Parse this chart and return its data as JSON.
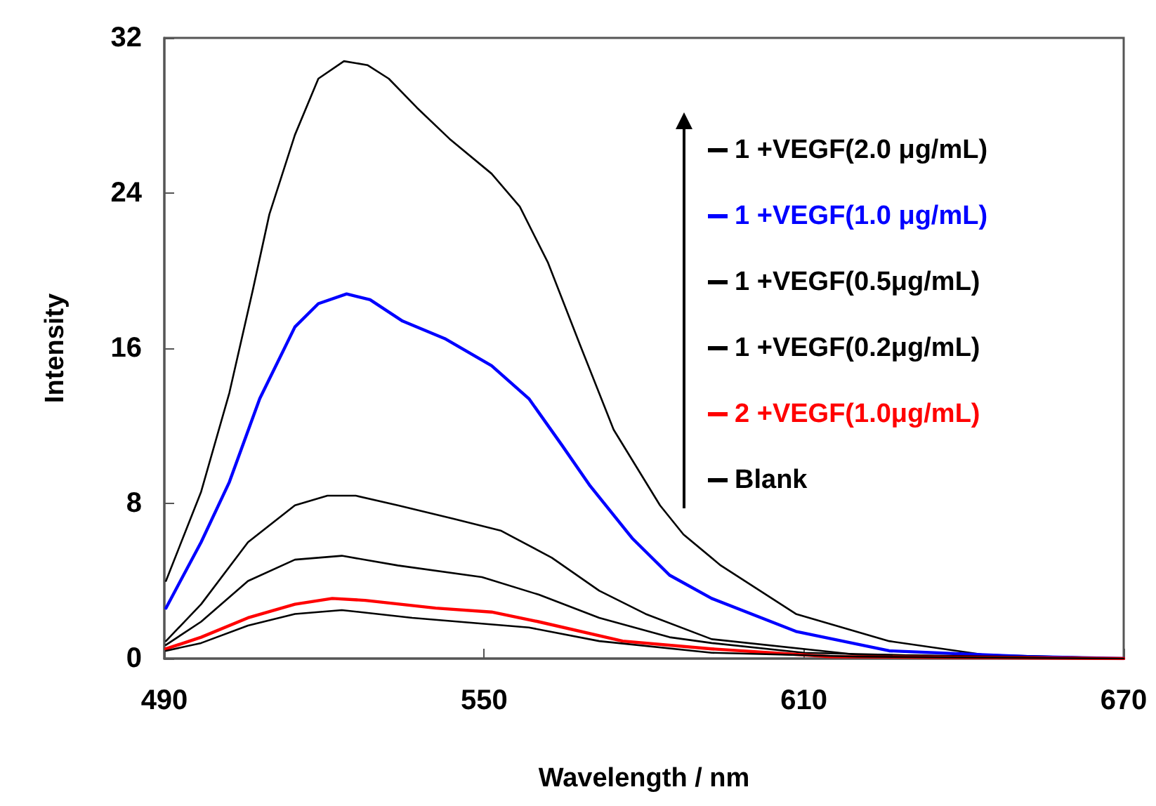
{
  "chart_data": {
    "type": "line",
    "xlabel": "Wavelength / nm",
    "ylabel": "Intensity",
    "xlim": [
      490,
      670
    ],
    "xticks": [
      490,
      550,
      610,
      670
    ],
    "ylim": [
      0,
      32
    ],
    "yticks": [
      0,
      8,
      16,
      24,
      32
    ],
    "grid": false,
    "legend": "top right",
    "marker": "none",
    "line_style": "solid",
    "series": [
      {
        "name": "1 +VEGF(2.0 μg/mL)",
        "color": "#000000",
        "x": [
          490.3,
          496.9,
          502.2,
          506.6,
          509.7,
          514.5,
          518.9,
          523.7,
          528.1,
          532.1,
          537.4,
          543.5,
          551.4,
          556.7,
          562.0,
          568.1,
          574.3,
          583.0,
          587.4,
          594.4,
          608.5,
          626,
          643.7,
          670
        ],
        "values": [
          4.0,
          8.6,
          13.7,
          19.0,
          22.9,
          27.0,
          29.9,
          30.8,
          30.6,
          29.9,
          28.4,
          26.8,
          25.0,
          23.3,
          20.4,
          16.1,
          11.8,
          7.9,
          6.4,
          4.8,
          2.3,
          0.9,
          0.2,
          0
        ]
      },
      {
        "name": "1 +VEGF(1.0 μg/mL)",
        "color": "#0000ff",
        "x": [
          490.3,
          496.9,
          502.2,
          507.9,
          514.5,
          518.9,
          524.2,
          528.6,
          534.7,
          542.6,
          551.4,
          558.4,
          564.6,
          569.9,
          577.8,
          584.8,
          592.7,
          608.5,
          626,
          652,
          670
        ],
        "values": [
          2.6,
          6.0,
          9.1,
          13.4,
          17.1,
          18.3,
          18.8,
          18.5,
          17.4,
          16.5,
          15.1,
          13.4,
          11.0,
          8.9,
          6.2,
          4.3,
          3.1,
          1.4,
          0.4,
          0.1,
          0
        ]
      },
      {
        "name": "1 +VEGF(0.5μg/mL)",
        "color": "#000000",
        "x": [
          490.3,
          496.9,
          505.7,
          514.5,
          520.6,
          525.9,
          533.8,
          544.3,
          553.1,
          562.7,
          571.6,
          580.3,
          592.7,
          620,
          650,
          670
        ],
        "values": [
          0.9,
          2.8,
          6.0,
          7.9,
          8.4,
          8.4,
          7.9,
          7.2,
          6.6,
          5.2,
          3.5,
          2.3,
          1.0,
          0.2,
          0.1,
          0
        ]
      },
      {
        "name": "1 +VEGF(0.2μg/mL)",
        "color": "#000000",
        "x": [
          490.3,
          496.9,
          505.7,
          514.5,
          523.3,
          533.8,
          549.6,
          560.2,
          571.6,
          584.8,
          592.7,
          610,
          640,
          670
        ],
        "values": [
          0.7,
          1.9,
          4.0,
          5.1,
          5.3,
          4.8,
          4.2,
          3.3,
          2.1,
          1.1,
          0.8,
          0.3,
          0.1,
          0
        ]
      },
      {
        "name": "2 +VEGF(1.0μg/mL)",
        "color": "#ff0000",
        "x": [
          490.3,
          496.9,
          505.7,
          514.5,
          521.5,
          527.7,
          540.9,
          551.4,
          560.2,
          576.0,
          592.7,
          615,
          670
        ],
        "values": [
          0.5,
          1.1,
          2.1,
          2.8,
          3.1,
          3.0,
          2.6,
          2.4,
          1.9,
          0.9,
          0.5,
          0.1,
          0
        ]
      },
      {
        "name": "Blank",
        "color": "#000000",
        "x": [
          490.3,
          496.9,
          505.7,
          514.5,
          523.3,
          536.5,
          549.6,
          558.4,
          571.6,
          592.7,
          620,
          670
        ],
        "values": [
          0.4,
          0.8,
          1.7,
          2.3,
          2.5,
          2.1,
          1.8,
          1.6,
          0.9,
          0.3,
          0.1,
          0
        ]
      }
    ]
  }
}
